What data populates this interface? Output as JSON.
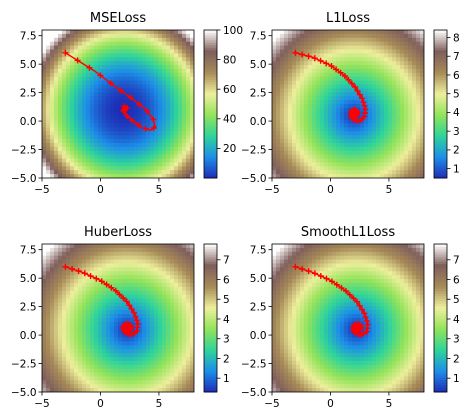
{
  "chart_data": [
    {
      "type": "heatmap",
      "title": "MSELoss",
      "xlim": [
        -5,
        8
      ],
      "ylim": [
        -5,
        8
      ],
      "xticks": [
        -5,
        0,
        5
      ],
      "yticks": [
        -5.0,
        -2.5,
        0.0,
        2.5,
        5.0,
        7.5
      ],
      "center": [
        2,
        1
      ],
      "scale": {
        "ax": 1.0,
        "ay": 1.0,
        "corner": 0
      },
      "colorbar": {
        "min": 0,
        "max": 100,
        "ticks": [
          20,
          40,
          60,
          80,
          100
        ]
      },
      "trajectory": {
        "start": [
          -3,
          6
        ],
        "end": [
          2,
          1
        ],
        "markers": 20,
        "points": [
          [
            -3.0,
            6.0
          ],
          [
            -0.5,
            4.4
          ],
          [
            1.3,
            3.0
          ],
          [
            2.8,
            1.9
          ],
          [
            3.9,
            1.0
          ],
          [
            4.5,
            0.2
          ],
          [
            4.7,
            -0.5
          ],
          [
            4.3,
            -0.8
          ],
          [
            3.6,
            -0.6
          ],
          [
            2.9,
            -0.1
          ],
          [
            2.3,
            0.4
          ],
          [
            2.0,
            0.8
          ],
          [
            1.9,
            1.1
          ],
          [
            2.0,
            1.3
          ],
          [
            2.2,
            1.3
          ],
          [
            2.3,
            1.2
          ],
          [
            2.2,
            1.0
          ],
          [
            2.1,
            0.95
          ],
          [
            2.0,
            1.0
          ]
        ]
      }
    },
    {
      "type": "heatmap",
      "title": "L1Loss",
      "xlim": [
        -5,
        8
      ],
      "ylim": [
        -5,
        8
      ],
      "xticks": [
        -5,
        0,
        5
      ],
      "yticks": [
        -5.0,
        -2.5,
        0.0,
        2.5,
        5.0,
        7.5
      ],
      "center": [
        2,
        0.5
      ],
      "scale": {
        "ax": 1.0,
        "ay": 1.0,
        "corner": 0
      },
      "colorbar": {
        "min": 0.5,
        "max": 8.4,
        "ticks": [
          1,
          2,
          3,
          4,
          5,
          6,
          7,
          8
        ]
      },
      "trajectory": {
        "start": [
          -3,
          6
        ],
        "end": [
          2,
          0.5
        ],
        "markers": 45,
        "points": [
          [
            -3.0,
            6.0
          ],
          [
            -1.5,
            5.6
          ],
          [
            0.0,
            4.9
          ],
          [
            1.2,
            4.0
          ],
          [
            2.1,
            3.0
          ],
          [
            2.7,
            2.0
          ],
          [
            3.0,
            1.1
          ],
          [
            2.9,
            0.4
          ],
          [
            2.5,
            0.0
          ],
          [
            2.0,
            0.1
          ],
          [
            1.7,
            0.5
          ],
          [
            1.8,
            0.9
          ],
          [
            2.1,
            1.0
          ],
          [
            2.3,
            0.8
          ],
          [
            2.2,
            0.5
          ],
          [
            2.0,
            0.45
          ],
          [
            2.0,
            0.5
          ]
        ]
      }
    },
    {
      "type": "heatmap",
      "title": "HuberLoss",
      "xlim": [
        -5,
        8
      ],
      "ylim": [
        -5,
        8
      ],
      "xticks": [
        -5,
        0,
        5
      ],
      "yticks": [
        -5.0,
        -2.5,
        0.0,
        2.5,
        5.0,
        7.5
      ],
      "center": [
        2.3,
        0.5
      ],
      "scale": {
        "ax": 1.0,
        "ay": 1.0,
        "corner": 0
      },
      "colorbar": {
        "min": 0.3,
        "max": 7.8,
        "ticks": [
          1,
          2,
          3,
          4,
          5,
          6,
          7
        ]
      },
      "trajectory": {
        "start": [
          -3,
          6
        ],
        "end": [
          2.3,
          0.5
        ],
        "markers": 45,
        "points": [
          [
            -3.0,
            6.0
          ],
          [
            -1.5,
            5.5
          ],
          [
            0.0,
            4.8
          ],
          [
            1.3,
            3.9
          ],
          [
            2.3,
            2.9
          ],
          [
            2.9,
            1.9
          ],
          [
            3.2,
            1.0
          ],
          [
            3.1,
            0.3
          ],
          [
            2.6,
            0.0
          ],
          [
            2.1,
            0.2
          ],
          [
            1.9,
            0.6
          ],
          [
            2.1,
            0.95
          ],
          [
            2.5,
            0.95
          ],
          [
            2.6,
            0.6
          ],
          [
            2.4,
            0.4
          ],
          [
            2.3,
            0.5
          ]
        ]
      }
    },
    {
      "type": "heatmap",
      "title": "SmoothL1Loss",
      "xlim": [
        -5,
        8
      ],
      "ylim": [
        -5,
        8
      ],
      "xticks": [
        -5,
        0,
        5
      ],
      "yticks": [
        -5.0,
        -2.5,
        0.0,
        2.5,
        5.0,
        7.5
      ],
      "center": [
        2.2,
        0.5
      ],
      "scale": {
        "ax": 1.0,
        "ay": 1.0,
        "corner": 0
      },
      "colorbar": {
        "min": 0.3,
        "max": 7.8,
        "ticks": [
          1,
          2,
          3,
          4,
          5,
          6,
          7
        ]
      },
      "trajectory": {
        "start": [
          -3,
          6
        ],
        "end": [
          2.2,
          0.5
        ],
        "markers": 45,
        "points": [
          [
            -3.0,
            6.0
          ],
          [
            -1.5,
            5.5
          ],
          [
            0.0,
            4.8
          ],
          [
            1.3,
            3.9
          ],
          [
            2.3,
            2.9
          ],
          [
            2.9,
            1.9
          ],
          [
            3.2,
            1.0
          ],
          [
            3.1,
            0.3
          ],
          [
            2.6,
            0.0
          ],
          [
            2.1,
            0.2
          ],
          [
            1.9,
            0.6
          ],
          [
            2.1,
            0.95
          ],
          [
            2.5,
            0.95
          ],
          [
            2.6,
            0.6
          ],
          [
            2.3,
            0.4
          ],
          [
            2.2,
            0.5
          ]
        ]
      }
    }
  ],
  "colors": {
    "trajectory": "#ff0000",
    "colormap": [
      "#1e2bb5",
      "#1d8ee8",
      "#2fd49a",
      "#93e35a",
      "#eeef9c",
      "#a78b58",
      "#7f5f5c",
      "#ffffff"
    ]
  }
}
